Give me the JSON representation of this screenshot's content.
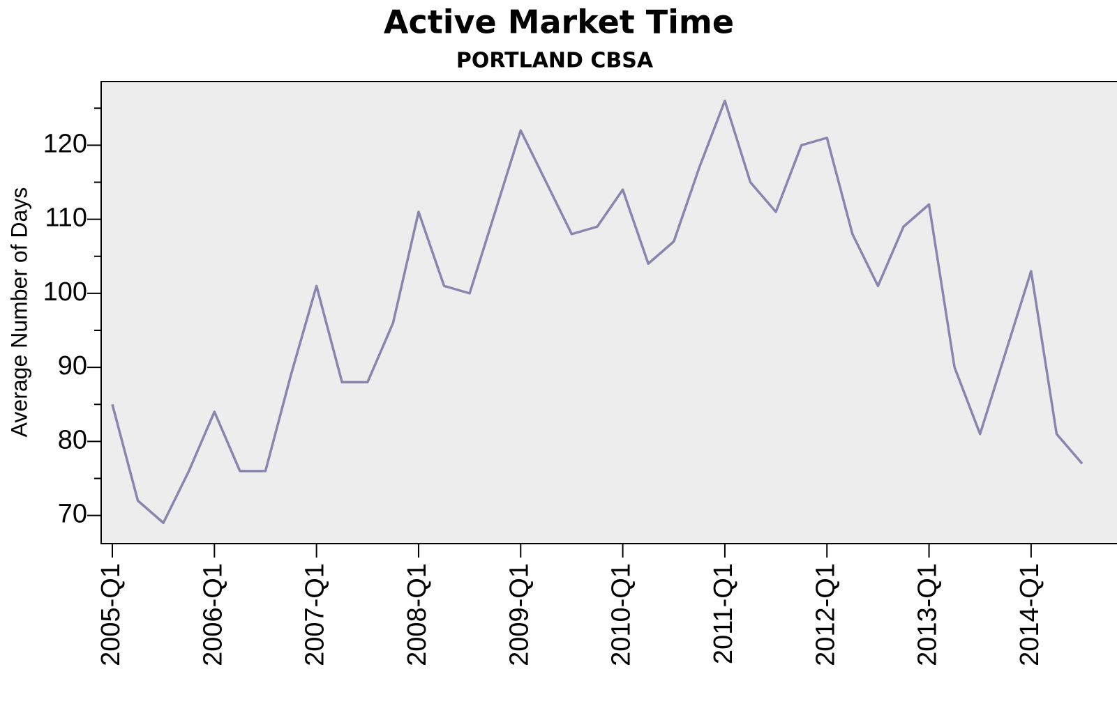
{
  "chart_data": {
    "type": "line",
    "title": "Active Market Time",
    "subtitle": "PORTLAND CBSA",
    "y_label": "Average Number of Days",
    "categories": [
      "2005-Q1",
      null,
      null,
      null,
      "2006-Q1",
      null,
      null,
      null,
      "2007-Q1",
      null,
      null,
      null,
      "2008-Q1",
      null,
      null,
      null,
      "2009-Q1",
      null,
      null,
      null,
      "2010-Q1",
      null,
      null,
      null,
      "2011-Q1",
      null,
      null,
      null,
      "2012-Q1",
      null,
      null,
      null,
      "2013-Q1",
      null,
      null,
      null,
      "2014-Q1",
      null,
      null
    ],
    "series": [
      {
        "color": "#8886ae",
        "values": [
          85,
          72,
          69,
          76,
          84,
          76,
          76,
          89,
          101,
          88,
          88,
          96,
          111,
          101,
          100,
          111,
          122,
          115,
          108,
          109,
          114,
          104,
          107,
          117,
          126,
          115,
          111,
          120,
          121,
          108,
          101,
          109,
          112,
          90,
          81,
          92,
          103,
          81,
          77
        ]
      }
    ],
    "ylim": [
      66.2,
      128.6
    ],
    "yticks": [
      70,
      80,
      90,
      100,
      110,
      120
    ],
    "minor_yticks": [
      75,
      85,
      95,
      105,
      115,
      125
    ],
    "plot_background": "#ededed"
  }
}
